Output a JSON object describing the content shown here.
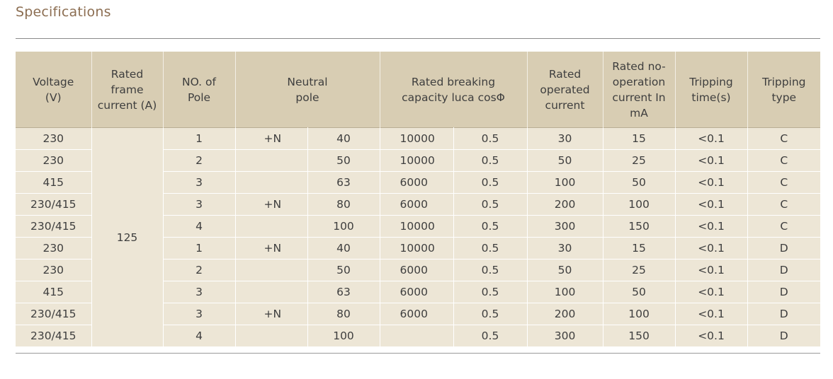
{
  "page": {
    "heading": "Specifications"
  },
  "table": {
    "headers": {
      "voltage": "Voltage\n(V)",
      "frame_current": "Rated frame\ncurrent  (A)",
      "poles": "NO. of\nPole",
      "neutral": "Neutral\npole",
      "breaking": "Rated breaking\ncapacity luca cosΦ",
      "operated": "Rated\noperated\ncurrent",
      "no_operation": "Rated no-\noperation\ncurrent In\nmA",
      "trip_time": "Tripping\ntime(s)",
      "trip_type": "Tripping\ntype"
    },
    "frame_current_value": "125",
    "rows": [
      {
        "voltage": "230",
        "poles": "1",
        "neutral": "+N",
        "current": "40",
        "capacity": "10000",
        "cos": "0.5",
        "operated": "30",
        "no_op": "15",
        "time": "<0.1",
        "type": "C"
      },
      {
        "voltage": "230",
        "poles": "2",
        "neutral": "",
        "current": "50",
        "capacity": "10000",
        "cos": "0.5",
        "operated": "50",
        "no_op": "25",
        "time": "<0.1",
        "type": "C"
      },
      {
        "voltage": "415",
        "poles": "3",
        "neutral": "",
        "current": "63",
        "capacity": "6000",
        "cos": "0.5",
        "operated": "100",
        "no_op": "50",
        "time": "<0.1",
        "type": "C"
      },
      {
        "voltage": "230/415",
        "poles": "3",
        "neutral": "+N",
        "current": "80",
        "capacity": "6000",
        "cos": "0.5",
        "operated": "200",
        "no_op": "100",
        "time": "<0.1",
        "type": "C"
      },
      {
        "voltage": "230/415",
        "poles": "4",
        "neutral": "",
        "current": "100",
        "capacity": "10000",
        "cos": "0.5",
        "operated": "300",
        "no_op": "150",
        "time": "<0.1",
        "type": "C"
      },
      {
        "voltage": "230",
        "poles": "1",
        "neutral": "+N",
        "current": "40",
        "capacity": "10000",
        "cos": "0.5",
        "operated": "30",
        "no_op": "15",
        "time": "<0.1",
        "type": "D"
      },
      {
        "voltage": "230",
        "poles": "2",
        "neutral": "",
        "current": "50",
        "capacity": "6000",
        "cos": "0.5",
        "operated": "50",
        "no_op": "25",
        "time": "<0.1",
        "type": "D"
      },
      {
        "voltage": "415",
        "poles": "3",
        "neutral": "",
        "current": "63",
        "capacity": "6000",
        "cos": "0.5",
        "operated": "100",
        "no_op": "50",
        "time": "<0.1",
        "type": "D"
      },
      {
        "voltage": "230/415",
        "poles": "3",
        "neutral": "+N",
        "current": "80",
        "capacity": "6000",
        "cos": "0.5",
        "operated": "200",
        "no_op": "100",
        "time": "<0.1",
        "type": "D"
      },
      {
        "voltage": "230/415",
        "poles": "4",
        "neutral": "",
        "current": "100",
        "capacity": "",
        "cos": "0.5",
        "operated": "300",
        "no_op": "150",
        "time": "<0.1",
        "type": "D"
      }
    ]
  }
}
